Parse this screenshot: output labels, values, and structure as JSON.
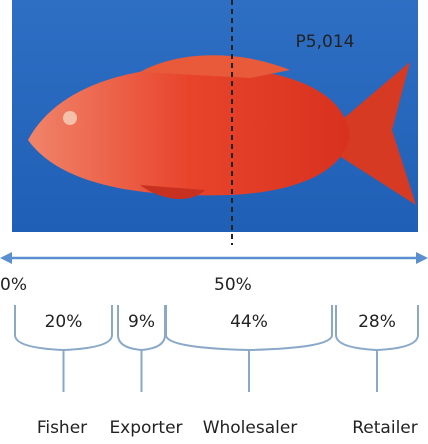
{
  "price_label": "P5,014",
  "scale": {
    "start": "0%",
    "middle": "50%"
  },
  "segments": [
    {
      "share": "20%",
      "name": "Fisher"
    },
    {
      "share": "9%",
      "name": "Exporter"
    },
    {
      "share": "44%",
      "name": "Wholesaler"
    },
    {
      "share": "28%",
      "name": "Retailer"
    }
  ]
}
